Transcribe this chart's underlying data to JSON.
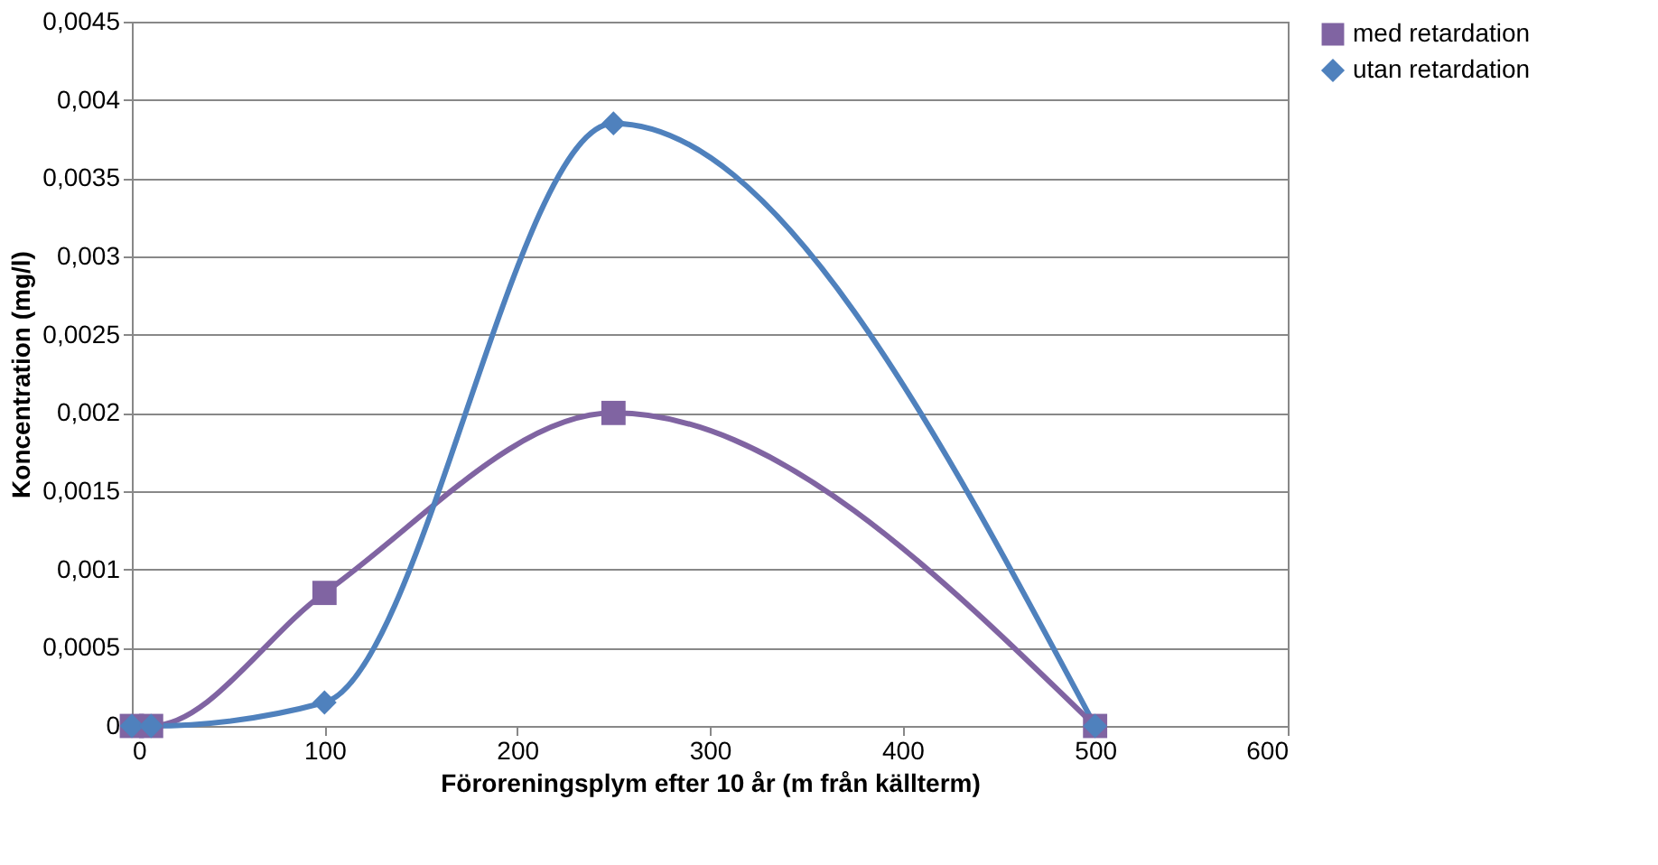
{
  "chart_data": {
    "type": "line",
    "xlabel": "Föroreningsplym efter 10 år (m från källterm)",
    "ylabel": "Koncentration (mg/l)",
    "xlim": [
      0,
      600
    ],
    "xticks": [
      0,
      100,
      200,
      300,
      400,
      500,
      600
    ],
    "ylim": [
      0,
      0.0045
    ],
    "yticks": [
      0,
      {
        "value": 0.0005,
        "label": "0,0005"
      },
      {
        "value": 0.001,
        "label": "0,001"
      },
      {
        "value": 0.0015,
        "label": "0,0015"
      },
      {
        "value": 0.002,
        "label": "0,002"
      },
      {
        "value": 0.0025,
        "label": "0,0025"
      },
      {
        "value": 0.003,
        "label": "0,003"
      },
      {
        "value": 0.0035,
        "label": "0,0035"
      },
      {
        "value": 0.004,
        "label": "0,004"
      },
      {
        "value": 0.0045,
        "label": "0,0045"
      }
    ],
    "x": [
      0,
      10,
      100,
      250,
      500
    ],
    "series": [
      {
        "name": "med retardation",
        "color": "#8064a2",
        "marker": "square",
        "values": [
          0,
          0,
          0.00085,
          0.002,
          0
        ]
      },
      {
        "name": "utan retardation",
        "color": "#4f81bd",
        "marker": "diamond",
        "values": [
          0,
          0,
          0.00015,
          0.00385,
          0
        ]
      }
    ],
    "grid": "y",
    "legend": "right"
  }
}
